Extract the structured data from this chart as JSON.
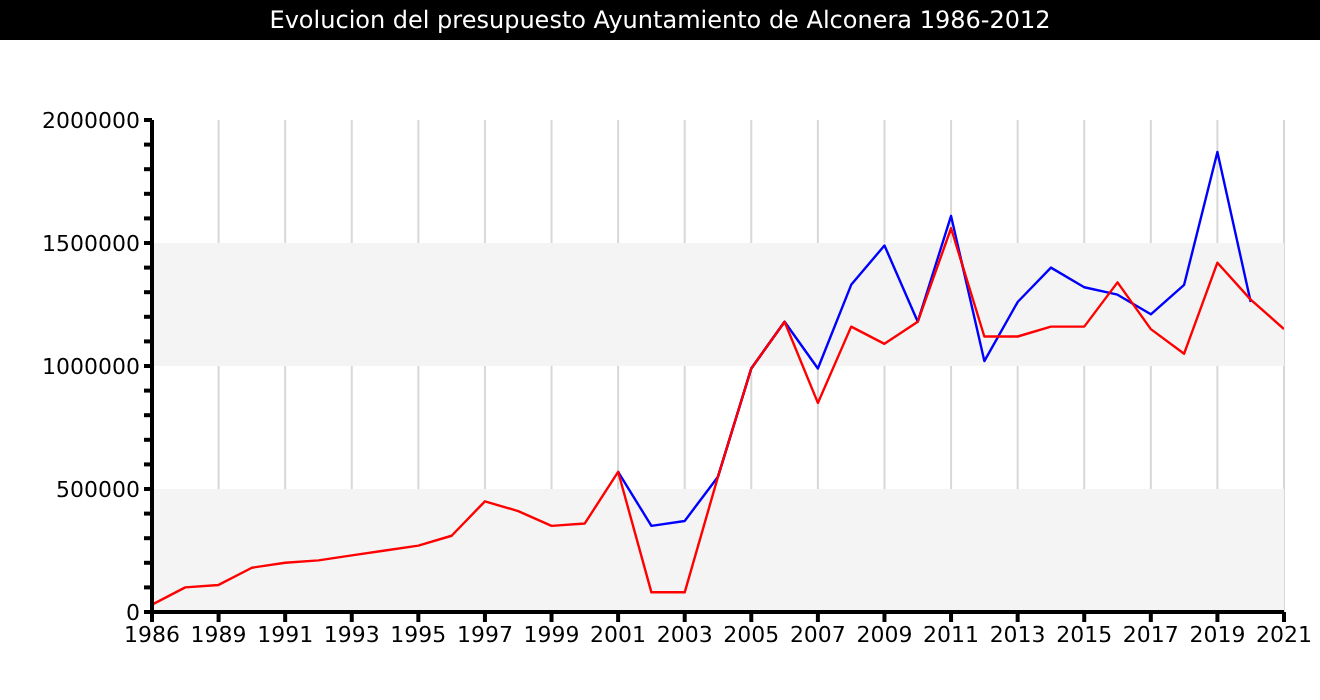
{
  "chart_data": {
    "type": "line",
    "title": "Evolucion del presupuesto Ayuntamiento de Alconera 1986-2012",
    "categories": [
      "1986",
      null,
      "1989",
      null,
      "1991",
      null,
      "1993",
      null,
      "1995",
      null,
      "1997",
      null,
      "1999",
      null,
      "2001",
      null,
      "2003",
      null,
      "2005",
      null,
      "2007",
      null,
      "2009",
      null,
      "2011",
      null,
      "2013",
      null,
      "2015",
      null,
      "2017",
      null,
      "2019",
      null,
      "2021"
    ],
    "series": [
      {
        "color": "#0000ff",
        "values": [
          null,
          null,
          null,
          null,
          null,
          null,
          null,
          null,
          null,
          null,
          null,
          null,
          null,
          null,
          570000,
          350000,
          370000,
          550000,
          990000,
          1180000,
          990000,
          1330000,
          1490000,
          1180000,
          1610000,
          1020000,
          1260000,
          1400000,
          1320000,
          1290000,
          1210000,
          1330000,
          1870000,
          1260000,
          null
        ]
      },
      {
        "color": "#ff0000",
        "values": [
          30000,
          100000,
          110000,
          180000,
          200000,
          210000,
          230000,
          250000,
          270000,
          310000,
          450000,
          410000,
          350000,
          360000,
          570000,
          80000,
          80000,
          550000,
          990000,
          1180000,
          850000,
          1160000,
          1090000,
          1180000,
          1560000,
          1120000,
          1120000,
          1160000,
          1160000,
          1340000,
          1150000,
          1050000,
          1420000,
          1270000,
          1150000
        ]
      }
    ],
    "ylim": [
      0,
      2000000
    ],
    "yticks": [
      0,
      {
        "value": 100000,
        "label": null
      },
      {
        "value": 200000,
        "label": null
      },
      {
        "value": 300000,
        "label": null
      },
      {
        "value": 400000,
        "label": null
      },
      500000,
      {
        "value": 600000,
        "label": null
      },
      {
        "value": 700000,
        "label": null
      },
      {
        "value": 800000,
        "label": null
      },
      {
        "value": 900000,
        "label": null
      },
      1000000,
      {
        "value": 1100000,
        "label": null
      },
      {
        "value": 1200000,
        "label": null
      },
      {
        "value": 1300000,
        "label": null
      },
      {
        "value": 1400000,
        "label": null
      },
      1500000,
      {
        "value": 1600000,
        "label": null
      },
      {
        "value": 1700000,
        "label": null
      },
      {
        "value": 1800000,
        "label": null
      },
      {
        "value": 1900000,
        "label": null
      },
      2000000
    ],
    "bands": [
      {
        "axis": "y",
        "from": 0,
        "to": 500000,
        "color": "#f4f4f4"
      },
      {
        "axis": "y",
        "from": 1000000,
        "to": 1500000,
        "color": "#f4f4f4"
      }
    ],
    "grid": true,
    "marker": "none",
    "line_style": "solid"
  }
}
